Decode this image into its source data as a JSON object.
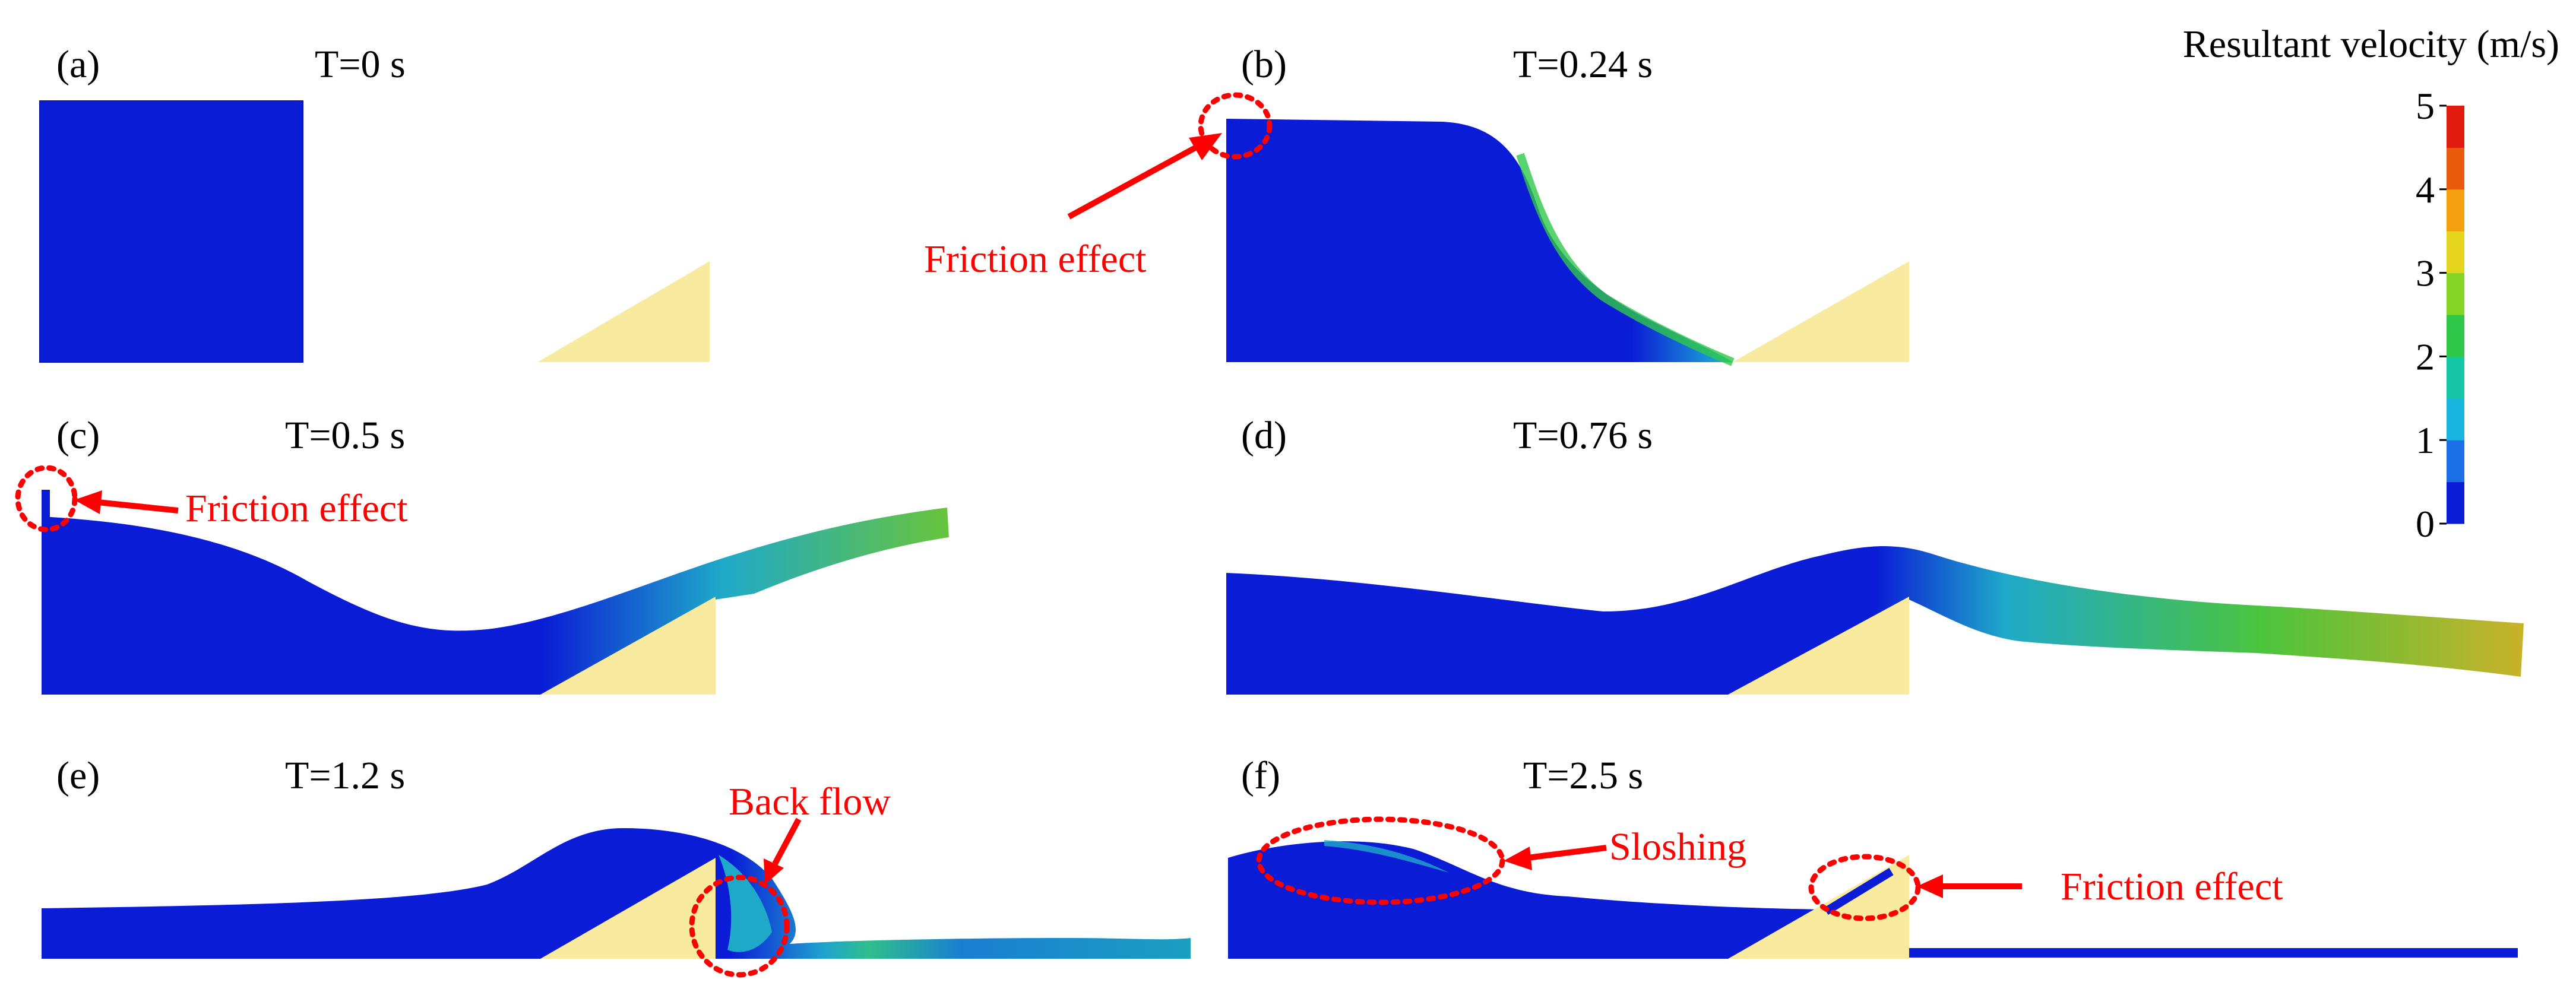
{
  "legend": {
    "title": "Resultant velocity (m/s)",
    "ticks": [
      "0",
      "1",
      "2",
      "3",
      "4",
      "5"
    ],
    "colors": [
      "#0a1cd6",
      "#1a6fe6",
      "#19b6e0",
      "#16c7a6",
      "#2fc84a",
      "#86d425",
      "#e6d51d",
      "#f5a00f",
      "#ea5a0d",
      "#e01a0d"
    ]
  },
  "panels": [
    {
      "id": "a",
      "label": "(a)",
      "time": "T=0 s"
    },
    {
      "id": "b",
      "label": "(b)",
      "time": "T=0.24 s"
    },
    {
      "id": "c",
      "label": "(c)",
      "time": "T=0.5 s"
    },
    {
      "id": "d",
      "label": "(d)",
      "time": "T=0.76 s"
    },
    {
      "id": "e",
      "label": "(e)",
      "time": "T=1.2 s"
    },
    {
      "id": "f",
      "label": "(f)",
      "time": "T=2.5 s"
    }
  ],
  "annotations": {
    "b_friction": "Friction effect",
    "c_friction": "Friction effect",
    "e_backflow": "Back flow",
    "f_sloshing": "Sloshing",
    "f_friction": "Friction effect"
  },
  "colors": {
    "fluid_low": "#0a1cd6",
    "fluid_mid": "#1fb9d6",
    "fluid_green": "#47c63a",
    "fluid_yellow": "#c7b423",
    "obstacle": "#f8eba0",
    "annotation": "#ff0000"
  }
}
